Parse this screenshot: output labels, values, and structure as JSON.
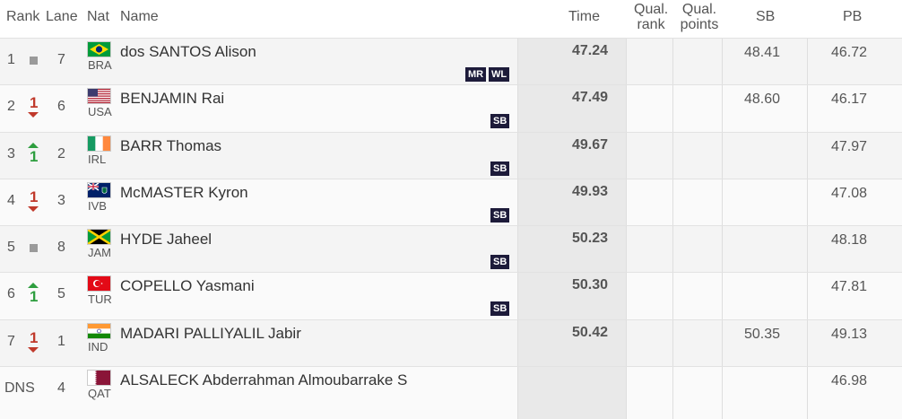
{
  "headers": {
    "rank": "Rank",
    "lane": "Lane",
    "nat": "Nat",
    "name": "Name",
    "time": "Time",
    "qual_rank_1": "Qual.",
    "qual_rank_2": "rank",
    "qual_points_1": "Qual.",
    "qual_points_2": "points",
    "sb": "SB",
    "pb": "PB"
  },
  "colors": {
    "badge_bg": "#1d1b3a",
    "up_arrow": "#2e9e3f",
    "down_arrow": "#c0392b",
    "same_square": "#9a9a9a"
  },
  "rows": [
    {
      "rank": "1",
      "move": "same",
      "lane": "7",
      "nat": "BRA",
      "flag": "brazil-flag",
      "name": "dos SANTOS Alison",
      "time": "47.24",
      "sb": "48.41",
      "pb": "46.72",
      "badges": [
        "WL",
        "MR"
      ]
    },
    {
      "rank": "2",
      "move": "down",
      "move_num": "1",
      "lane": "6",
      "nat": "USA",
      "flag": "usa-flag",
      "name": "BENJAMIN Rai",
      "time": "47.49",
      "sb": "48.60",
      "pb": "46.17",
      "badges": [
        "SB"
      ]
    },
    {
      "rank": "3",
      "move": "up",
      "move_num": "1",
      "lane": "2",
      "nat": "IRL",
      "flag": "ireland-flag",
      "name": "BARR Thomas",
      "time": "49.67",
      "sb": "",
      "pb": "47.97",
      "badges": [
        "SB"
      ]
    },
    {
      "rank": "4",
      "move": "down",
      "move_num": "1",
      "lane": "3",
      "nat": "IVB",
      "flag": "virgin-islands-flag",
      "name": "McMASTER Kyron",
      "time": "49.93",
      "sb": "",
      "pb": "47.08",
      "badges": [
        "SB"
      ]
    },
    {
      "rank": "5",
      "move": "same",
      "lane": "8",
      "nat": "JAM",
      "flag": "jamaica-flag",
      "name": "HYDE Jaheel",
      "time": "50.23",
      "sb": "",
      "pb": "48.18",
      "badges": [
        "SB"
      ]
    },
    {
      "rank": "6",
      "move": "up",
      "move_num": "1",
      "lane": "5",
      "nat": "TUR",
      "flag": "turkey-flag",
      "name": "COPELLO Yasmani",
      "time": "50.30",
      "sb": "",
      "pb": "47.81",
      "badges": [
        "SB"
      ]
    },
    {
      "rank": "7",
      "move": "down",
      "move_num": "1",
      "lane": "1",
      "nat": "IND",
      "flag": "india-flag",
      "name": "MADARI PALLIYALIL Jabir",
      "time": "50.42",
      "sb": "50.35",
      "pb": "49.13",
      "badges": []
    },
    {
      "rank": "DNS",
      "move": "none",
      "lane": "4",
      "nat": "QAT",
      "flag": "qatar-flag",
      "name": "ALSALECK Abderrahman Almoubarrake S",
      "time": "",
      "sb": "",
      "pb": "46.98",
      "badges": []
    }
  ]
}
